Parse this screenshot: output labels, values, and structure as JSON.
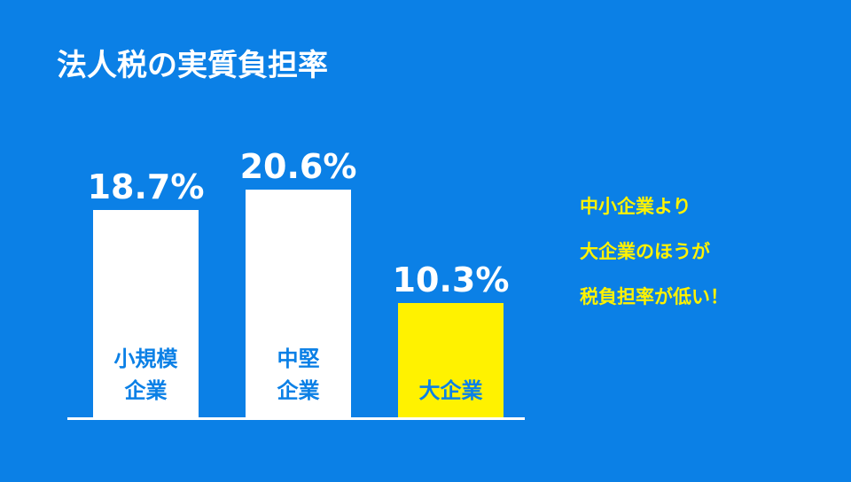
{
  "chart_data": {
    "type": "bar",
    "title": "法人税の実質負担率",
    "categories": [
      "小規模\n企業",
      "中堅\n企業",
      "大企業"
    ],
    "values": [
      18.7,
      20.6,
      10.3
    ],
    "value_labels": [
      "18.7%",
      "20.6%",
      "10.3%"
    ],
    "colors": [
      "#ffffff",
      "#ffffff",
      "#fff200"
    ],
    "annotation": "中小企業より\n大企業のほうが\n税負担率が低い！"
  }
}
